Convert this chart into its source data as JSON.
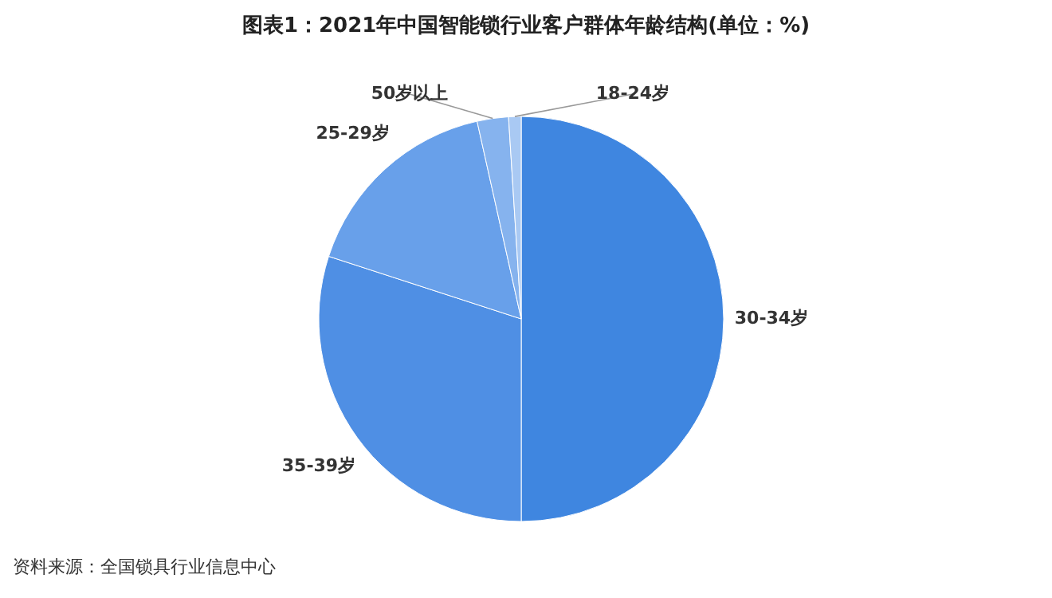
{
  "chart_data": {
    "type": "pie",
    "title": "图表1：2021年中国智能锁行业客户群体年龄结构(单位：%)",
    "categories": [
      "30-34岁",
      "35-39岁",
      "25-29岁",
      "50岁以上",
      "18-24岁"
    ],
    "values": [
      50,
      30,
      16.5,
      2.5,
      1
    ],
    "colors": [
      "#3f86e0",
      "#4f8fe4",
      "#68a0ea",
      "#86b3ee",
      "#a9c9f3"
    ],
    "annotations": [
      "资料来源：全国锁具行业信息中心"
    ]
  }
}
